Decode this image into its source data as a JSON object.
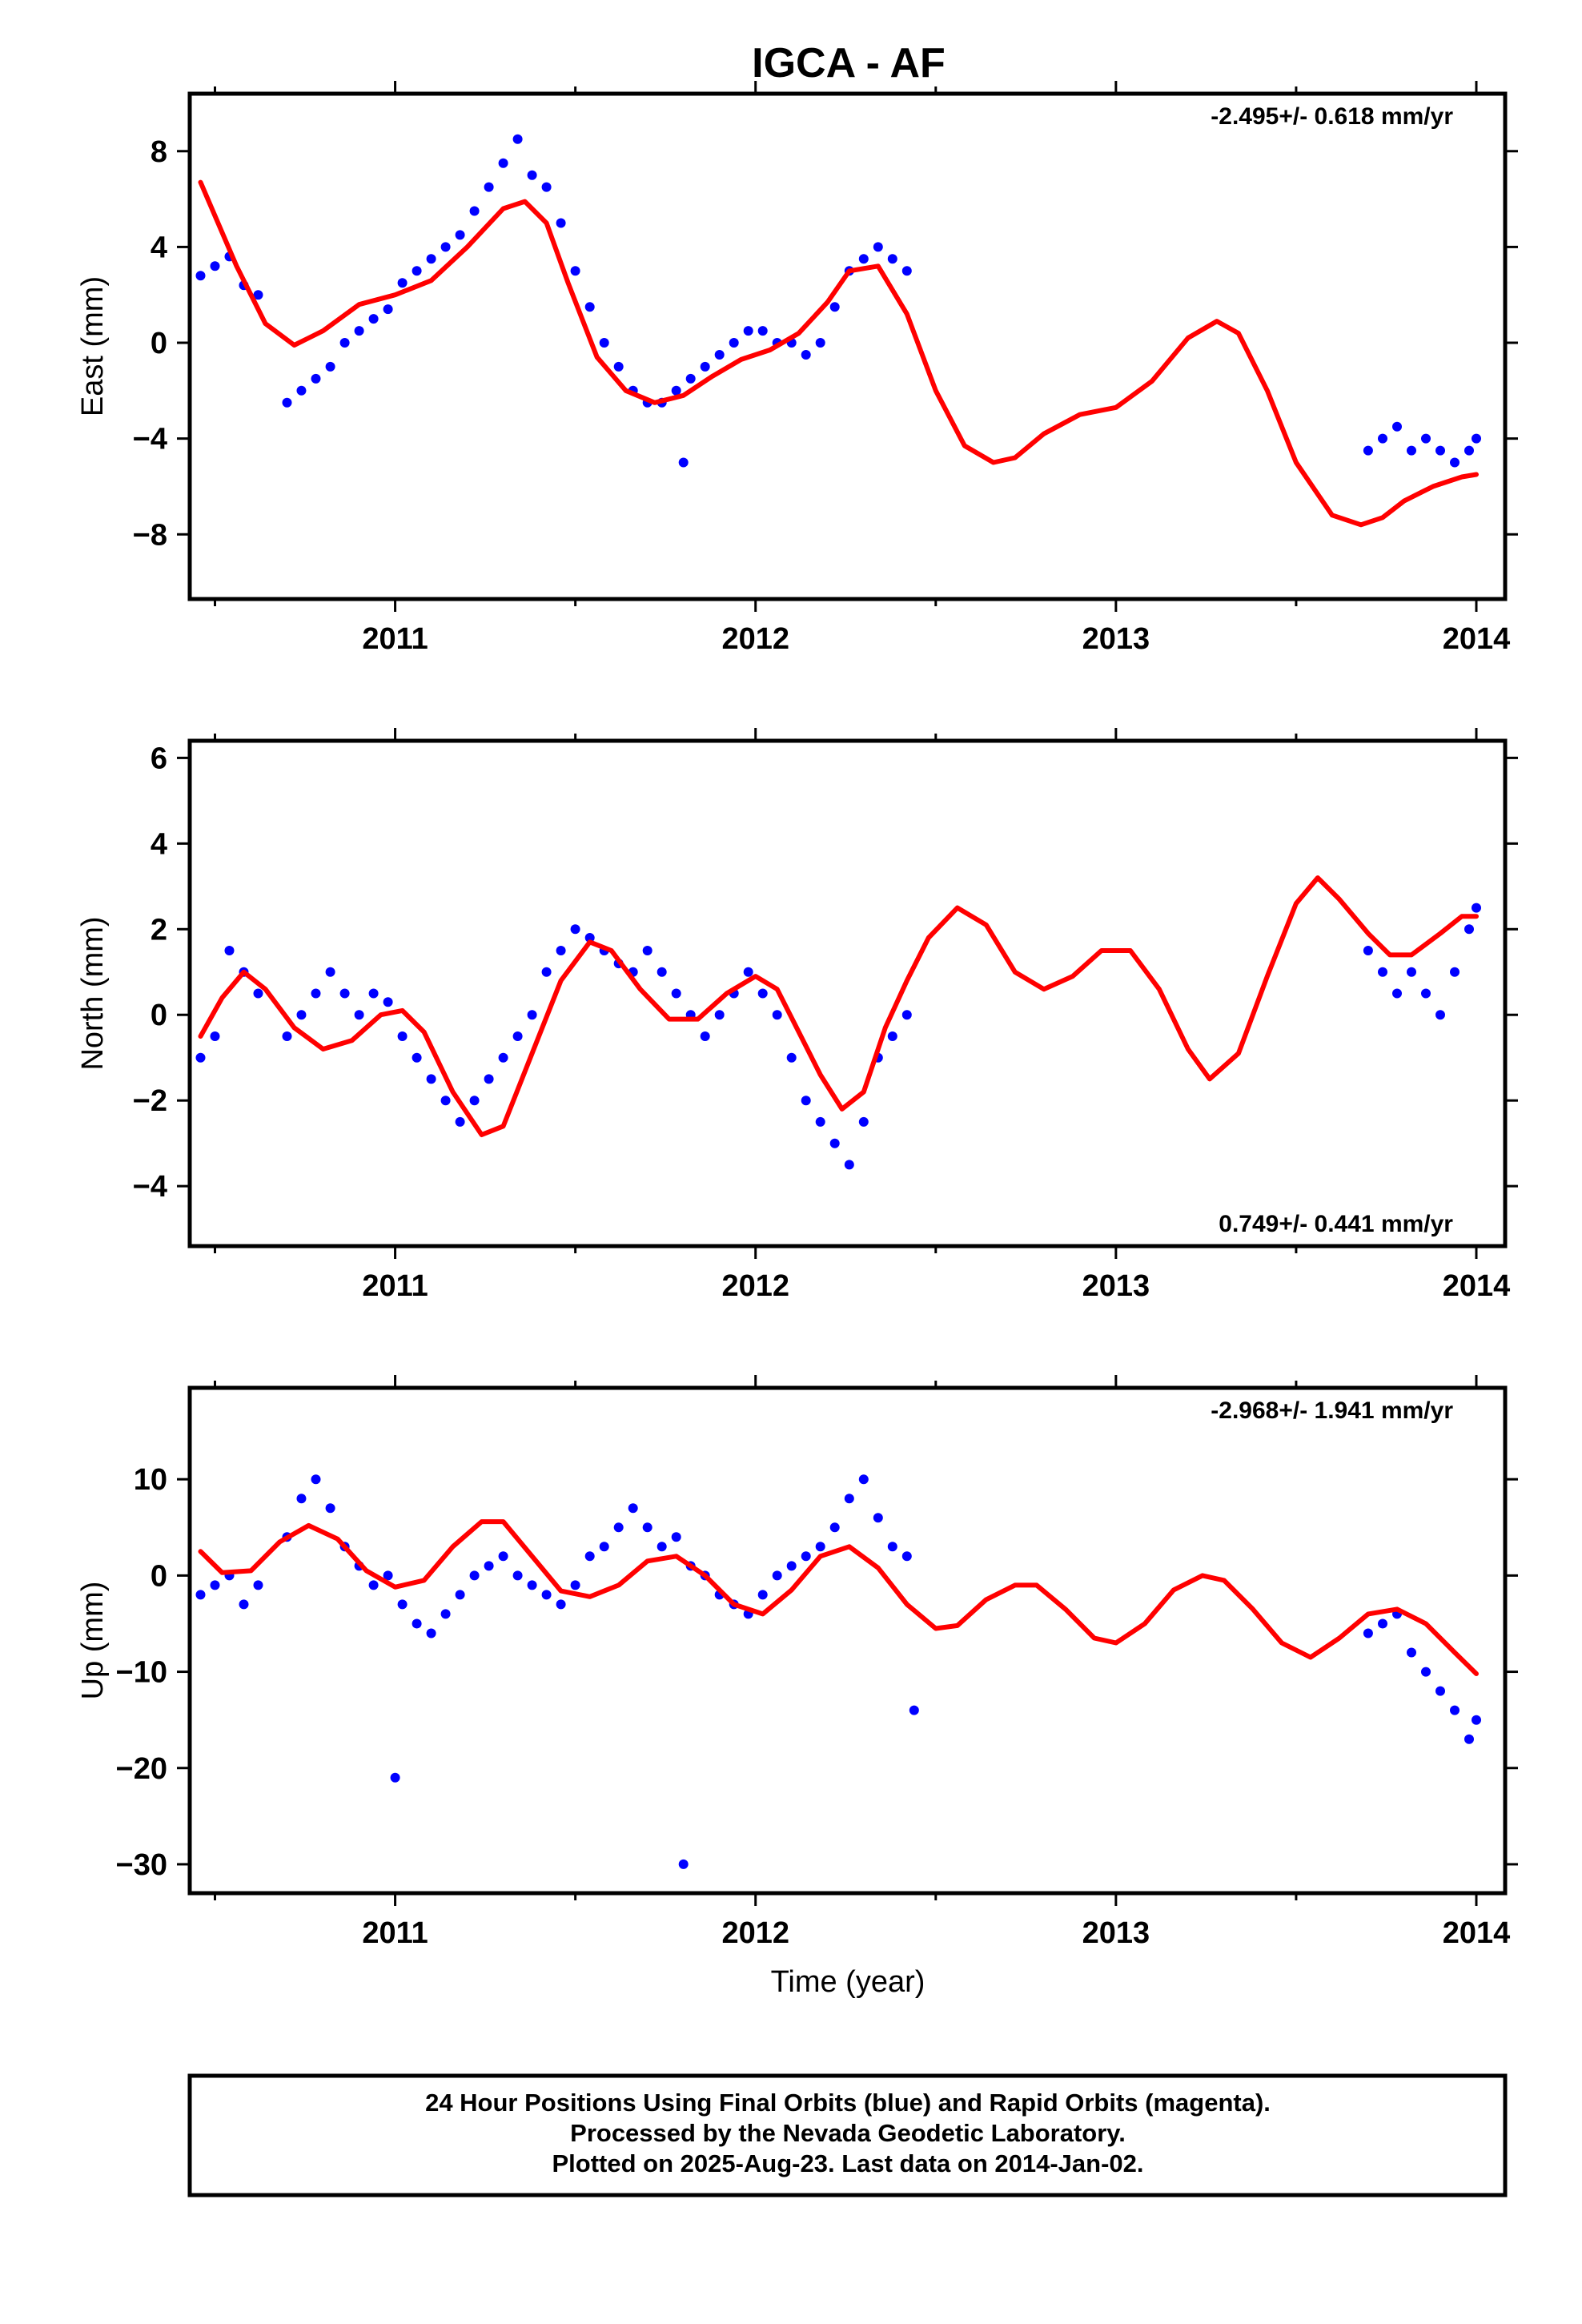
{
  "title": "IGCA - AF",
  "xlabel": "Time (year)",
  "x_ticks": [
    "2011",
    "2012",
    "2013",
    "2014"
  ],
  "footer": {
    "line1": "24 Hour Positions Using Final Orbits (blue) and Rapid Orbits (magenta).",
    "line2": "Processed by the Nevada Geodetic Laboratory.",
    "line3": "Plotted on 2025-Aug-23. Last data on 2014-Jan-02."
  },
  "colors": {
    "observations": "#0000ff",
    "model": "#ff0000",
    "axes": "#000000"
  },
  "chart_data": [
    {
      "type": "scatter",
      "ylabel": "East (mm)",
      "rate_label": "-2.495+/- 0.618 mm/yr",
      "rate_position": "top-right",
      "xlim": [
        2010.43,
        2014.08
      ],
      "ylim": [
        -10.7,
        10.4
      ],
      "y_ticks": [
        8,
        4,
        0,
        -4,
        -8
      ],
      "y_tick_labels": [
        "8",
        "4",
        "0",
        "−4",
        "−8"
      ],
      "series": [
        {
          "x": [
            2010.46,
            2010.5,
            2010.54,
            2010.58,
            2010.62,
            2010.7,
            2010.74,
            2010.78,
            2010.82,
            2010.86,
            2010.9,
            2010.94,
            2010.98,
            2011.02,
            2011.06,
            2011.1,
            2011.14,
            2011.18,
            2011.22,
            2011.26,
            2011.3,
            2011.34,
            2011.38,
            2011.42,
            2011.46,
            2011.5,
            2011.54,
            2011.58,
            2011.62,
            2011.66,
            2011.7,
            2011.74,
            2011.78,
            2011.8,
            2011.82,
            2011.86,
            2011.9,
            2011.94,
            2011.98,
            2012.02,
            2012.06,
            2012.1,
            2012.14,
            2012.18,
            2012.22,
            2012.26,
            2012.3,
            2012.34,
            2012.38,
            2012.42,
            2013.7,
            2013.74,
            2013.78,
            2013.82,
            2013.86,
            2013.9,
            2013.94,
            2013.98,
            2014.0
          ],
          "y": [
            2.8,
            3.2,
            3.6,
            2.4,
            2.0,
            -2.5,
            -2.0,
            -1.5,
            -1.0,
            0.0,
            0.5,
            1.0,
            1.4,
            2.5,
            3.0,
            3.5,
            4.0,
            4.5,
            5.5,
            6.5,
            7.5,
            8.5,
            7.0,
            6.5,
            5.0,
            3.0,
            1.5,
            0.0,
            -1.0,
            -2.0,
            -2.5,
            -2.5,
            -2.0,
            -5.0,
            -1.5,
            -1.0,
            -0.5,
            0.0,
            0.5,
            0.5,
            0.0,
            0.0,
            -0.5,
            0.0,
            1.5,
            3.0,
            3.5,
            4.0,
            3.5,
            3.0,
            -4.5,
            -4.0,
            -3.5,
            -4.5,
            -4.0,
            -4.5,
            -5.0,
            -4.5,
            -4.0
          ]
        }
      ],
      "model_x": [
        2010.46,
        2010.56,
        2010.64,
        2010.72,
        2010.8,
        2010.9,
        2011.0,
        2011.1,
        2011.2,
        2011.3,
        2011.36,
        2011.42,
        2011.48,
        2011.56,
        2011.64,
        2011.72,
        2011.8,
        2011.88,
        2011.96,
        2012.04,
        2012.12,
        2012.2,
        2012.26,
        2012.34,
        2012.42,
        2012.5,
        2012.58,
        2012.66,
        2012.72,
        2012.8,
        2012.9,
        2013.0,
        2013.1,
        2013.2,
        2013.28,
        2013.34,
        2013.42,
        2013.5,
        2013.6,
        2013.68,
        2013.74,
        2013.8,
        2013.88,
        2013.96,
        2014.0
      ],
      "model_y": [
        6.7,
        3.2,
        0.8,
        -0.1,
        0.5,
        1.6,
        2.0,
        2.6,
        4.0,
        5.6,
        5.9,
        5.0,
        2.5,
        -0.6,
        -2.0,
        -2.5,
        -2.2,
        -1.4,
        -0.7,
        -0.3,
        0.4,
        1.7,
        3.0,
        3.2,
        1.2,
        -2.0,
        -4.3,
        -5.0,
        -4.8,
        -3.8,
        -3.0,
        -2.7,
        -1.6,
        0.2,
        0.9,
        0.4,
        -2.0,
        -5.0,
        -7.2,
        -7.6,
        -7.3,
        -6.6,
        -6.0,
        -5.6,
        -5.5
      ]
    },
    {
      "type": "scatter",
      "ylabel": "North (mm)",
      "rate_label": "0.749+/- 0.441 mm/yr",
      "rate_position": "bottom-right",
      "xlim": [
        2010.43,
        2014.08
      ],
      "ylim": [
        -5.4,
        6.4
      ],
      "y_ticks": [
        6,
        4,
        2,
        0,
        -2,
        -4
      ],
      "y_tick_labels": [
        "6",
        "4",
        "2",
        "0",
        "−2",
        "−4"
      ],
      "series": [
        {
          "x": [
            2010.46,
            2010.5,
            2010.54,
            2010.58,
            2010.62,
            2010.7,
            2010.74,
            2010.78,
            2010.82,
            2010.86,
            2010.9,
            2010.94,
            2010.98,
            2011.02,
            2011.06,
            2011.1,
            2011.14,
            2011.18,
            2011.22,
            2011.26,
            2011.3,
            2011.34,
            2011.38,
            2011.42,
            2011.46,
            2011.5,
            2011.54,
            2011.58,
            2011.62,
            2011.66,
            2011.7,
            2011.74,
            2011.78,
            2011.82,
            2011.86,
            2011.9,
            2011.94,
            2011.98,
            2012.02,
            2012.06,
            2012.1,
            2012.14,
            2012.18,
            2012.22,
            2012.26,
            2012.3,
            2012.34,
            2012.38,
            2012.42,
            2013.7,
            2013.74,
            2013.78,
            2013.82,
            2013.86,
            2013.9,
            2013.94,
            2013.98,
            2014.0
          ],
          "y": [
            -1.0,
            -0.5,
            1.5,
            1.0,
            0.5,
            -0.5,
            0.0,
            0.5,
            1.0,
            0.5,
            0.0,
            0.5,
            0.3,
            -0.5,
            -1.0,
            -1.5,
            -2.0,
            -2.5,
            -2.0,
            -1.5,
            -1.0,
            -0.5,
            0.0,
            1.0,
            1.5,
            2.0,
            1.8,
            1.5,
            1.2,
            1.0,
            1.5,
            1.0,
            0.5,
            0.0,
            -0.5,
            0.0,
            0.5,
            1.0,
            0.5,
            0.0,
            -1.0,
            -2.0,
            -2.5,
            -3.0,
            -3.5,
            -2.5,
            -1.0,
            -0.5,
            0.0,
            1.5,
            1.0,
            0.5,
            1.0,
            0.5,
            0.0,
            1.0,
            2.0,
            2.5
          ]
        }
      ],
      "model_x": [
        2010.46,
        2010.52,
        2010.58,
        2010.64,
        2010.72,
        2010.8,
        2010.88,
        2010.96,
        2011.02,
        2011.08,
        2011.16,
        2011.24,
        2011.3,
        2011.38,
        2011.46,
        2011.54,
        2011.6,
        2011.68,
        2011.76,
        2011.84,
        2011.92,
        2012.0,
        2012.06,
        2012.12,
        2012.18,
        2012.24,
        2012.3,
        2012.36,
        2012.42,
        2012.48,
        2012.56,
        2012.64,
        2012.72,
        2012.8,
        2012.88,
        2012.96,
        2013.04,
        2013.12,
        2013.2,
        2013.26,
        2013.34,
        2013.42,
        2013.5,
        2013.56,
        2013.62,
        2013.7,
        2013.76,
        2013.82,
        2013.9,
        2013.96,
        2014.0
      ],
      "model_y": [
        -0.5,
        0.4,
        1.0,
        0.6,
        -0.3,
        -0.8,
        -0.6,
        0.0,
        0.1,
        -0.4,
        -1.8,
        -2.8,
        -2.6,
        -0.9,
        0.8,
        1.7,
        1.5,
        0.6,
        -0.1,
        -0.1,
        0.5,
        0.9,
        0.6,
        -0.4,
        -1.4,
        -2.2,
        -1.8,
        -0.3,
        0.8,
        1.8,
        2.5,
        2.1,
        1.0,
        0.6,
        0.9,
        1.5,
        1.5,
        0.6,
        -0.8,
        -1.5,
        -0.9,
        0.9,
        2.6,
        3.2,
        2.7,
        1.9,
        1.4,
        1.4,
        1.9,
        2.3,
        2.3
      ]
    },
    {
      "type": "scatter",
      "ylabel": "Up (mm)",
      "rate_label": "-2.968+/- 1.941 mm/yr",
      "rate_position": "top-right",
      "xlim": [
        2010.43,
        2014.08
      ],
      "ylim": [
        -33.0,
        19.5
      ],
      "y_ticks": [
        10,
        0,
        -10,
        -20,
        -30
      ],
      "y_tick_labels": [
        "10",
        "0",
        "−10",
        "−20",
        "−30"
      ],
      "series": [
        {
          "x": [
            2010.46,
            2010.5,
            2010.54,
            2010.58,
            2010.62,
            2010.7,
            2010.74,
            2010.78,
            2010.82,
            2010.86,
            2010.9,
            2010.94,
            2010.98,
            2011.0,
            2011.02,
            2011.06,
            2011.1,
            2011.14,
            2011.18,
            2011.22,
            2011.26,
            2011.3,
            2011.34,
            2011.38,
            2011.42,
            2011.46,
            2011.5,
            2011.54,
            2011.58,
            2011.62,
            2011.66,
            2011.7,
            2011.74,
            2011.78,
            2011.8,
            2011.82,
            2011.86,
            2011.9,
            2011.94,
            2011.98,
            2012.02,
            2012.06,
            2012.1,
            2012.14,
            2012.18,
            2012.22,
            2012.26,
            2012.3,
            2012.34,
            2012.38,
            2012.42,
            2012.44,
            2013.7,
            2013.74,
            2013.78,
            2013.82,
            2013.86,
            2013.9,
            2013.94,
            2013.98,
            2014.0
          ],
          "y": [
            -2,
            -1,
            0,
            -3,
            -1,
            4,
            8,
            10,
            7,
            3,
            1,
            -1,
            0,
            -21,
            -3,
            -5,
            -6,
            -4,
            -2,
            0,
            1,
            2,
            0,
            -1,
            -2,
            -3,
            -1,
            2,
            3,
            5,
            7,
            5,
            3,
            4,
            -30,
            1,
            0,
            -2,
            -3,
            -4,
            -2,
            0,
            1,
            2,
            3,
            5,
            8,
            10,
            6,
            3,
            2,
            -14,
            -6,
            -5,
            -4,
            -8,
            -10,
            -12,
            -14,
            -17,
            -15
          ]
        }
      ],
      "model_x": [
        2010.46,
        2010.52,
        2010.6,
        2010.68,
        2010.76,
        2010.84,
        2010.92,
        2011.0,
        2011.08,
        2011.16,
        2011.24,
        2011.3,
        2011.38,
        2011.46,
        2011.54,
        2011.62,
        2011.7,
        2011.78,
        2011.86,
        2011.94,
        2012.02,
        2012.1,
        2012.18,
        2012.26,
        2012.34,
        2012.42,
        2012.5,
        2012.56,
        2012.64,
        2012.72,
        2012.78,
        2012.86,
        2012.94,
        2013.0,
        2013.08,
        2013.16,
        2013.24,
        2013.3,
        2013.38,
        2013.46,
        2013.54,
        2013.62,
        2013.7,
        2013.78,
        2013.86,
        2013.94,
        2014.0
      ],
      "model_y": [
        2.5,
        0.3,
        0.5,
        3.5,
        5.2,
        3.8,
        0.5,
        -1.2,
        -0.5,
        3.0,
        5.6,
        5.6,
        2.0,
        -1.6,
        -2.2,
        -1.0,
        1.5,
        2.0,
        0.0,
        -3.0,
        -4.0,
        -1.5,
        2.0,
        3.0,
        0.8,
        -3.0,
        -5.5,
        -5.2,
        -2.5,
        -1.0,
        -1.0,
        -3.5,
        -6.5,
        -7.0,
        -5.0,
        -1.5,
        0.0,
        -0.5,
        -3.5,
        -7.0,
        -8.5,
        -6.5,
        -4.0,
        -3.5,
        -5.0,
        -8.0,
        -10.2
      ]
    }
  ]
}
